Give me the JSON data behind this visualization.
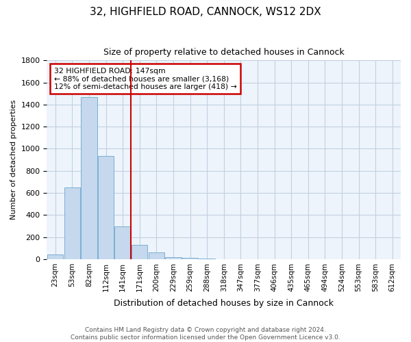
{
  "title1": "32, HIGHFIELD ROAD, CANNOCK, WS12 2DX",
  "title2": "Size of property relative to detached houses in Cannock",
  "xlabel": "Distribution of detached houses by size in Cannock",
  "ylabel": "Number of detached properties",
  "footnote": "Contains HM Land Registry data © Crown copyright and database right 2024.\nContains public sector information licensed under the Open Government Licence v3.0.",
  "bar_values": [
    45,
    648,
    1468,
    935,
    295,
    130,
    62,
    20,
    12,
    5,
    2,
    1,
    0,
    0,
    0,
    0,
    0,
    0,
    0,
    0,
    0
  ],
  "bin_labels": [
    "23sqm",
    "53sqm",
    "82sqm",
    "112sqm",
    "141sqm",
    "171sqm",
    "200sqm",
    "229sqm",
    "259sqm",
    "288sqm",
    "318sqm",
    "347sqm",
    "377sqm",
    "406sqm",
    "435sqm",
    "465sqm",
    "494sqm",
    "524sqm",
    "553sqm",
    "583sqm",
    "612sqm"
  ],
  "bar_color": "#c5d8ed",
  "bar_edge_color": "#7bafd4",
  "vline_x": 4.5,
  "vline_color": "#cc0000",
  "annotation_text": "32 HIGHFIELD ROAD: 147sqm\n← 88% of detached houses are smaller (3,168)\n12% of semi-detached houses are larger (418) →",
  "annotation_box_color": "#ffffff",
  "annotation_box_edge": "#cc0000",
  "ylim": [
    0,
    1800
  ],
  "yticks": [
    0,
    200,
    400,
    600,
    800,
    1000,
    1200,
    1400,
    1600,
    1800
  ],
  "grid_color": "#c0d0e0",
  "bg_color": "#eef4fb"
}
